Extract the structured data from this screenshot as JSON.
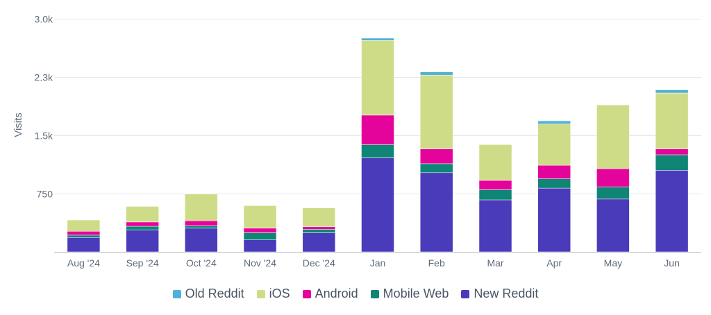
{
  "chart_data": {
    "type": "bar",
    "stacked": true,
    "ylabel": "Visits",
    "ylim": [
      0,
      3000
    ],
    "yticks": [
      {
        "value": 750,
        "label": "750"
      },
      {
        "value": 1500,
        "label": "1.5k"
      },
      {
        "value": 2250,
        "label": "2.3k"
      },
      {
        "value": 3000,
        "label": "3.0k"
      }
    ],
    "grid": true,
    "legend_position": "bottom",
    "categories": [
      "Aug '24",
      "Sep '24",
      "Oct '24",
      "Nov '24",
      "Dec '24",
      "Jan",
      "Feb",
      "Mar",
      "Apr",
      "May",
      "Jun"
    ],
    "series": [
      {
        "name": "New Reddit",
        "color": "#4a3bbb",
        "values": [
          185,
          280,
          305,
          155,
          245,
          1210,
          1020,
          670,
          820,
          680,
          1050
        ]
      },
      {
        "name": "Mobile Web",
        "color": "#0e8575",
        "values": [
          30,
          50,
          30,
          90,
          45,
          170,
          115,
          130,
          120,
          155,
          200
        ]
      },
      {
        "name": "Android",
        "color": "#e5049b",
        "values": [
          50,
          55,
          65,
          60,
          35,
          380,
          190,
          120,
          175,
          235,
          75
        ]
      },
      {
        "name": "iOS",
        "color": "#cfdc87",
        "values": [
          145,
          200,
          345,
          290,
          240,
          960,
          950,
          460,
          530,
          820,
          720
        ]
      },
      {
        "name": "Old Reddit",
        "color": "#4fb1d7",
        "values": [
          0,
          0,
          0,
          0,
          0,
          30,
          40,
          0,
          40,
          0,
          40
        ]
      }
    ]
  },
  "legend": [
    {
      "label": "Old Reddit",
      "color": "#4fb1d7"
    },
    {
      "label": "iOS",
      "color": "#cfdc87"
    },
    {
      "label": "Android",
      "color": "#e5049b"
    },
    {
      "label": "Mobile Web",
      "color": "#0e8575"
    },
    {
      "label": "New Reddit",
      "color": "#4a3bbb"
    }
  ]
}
